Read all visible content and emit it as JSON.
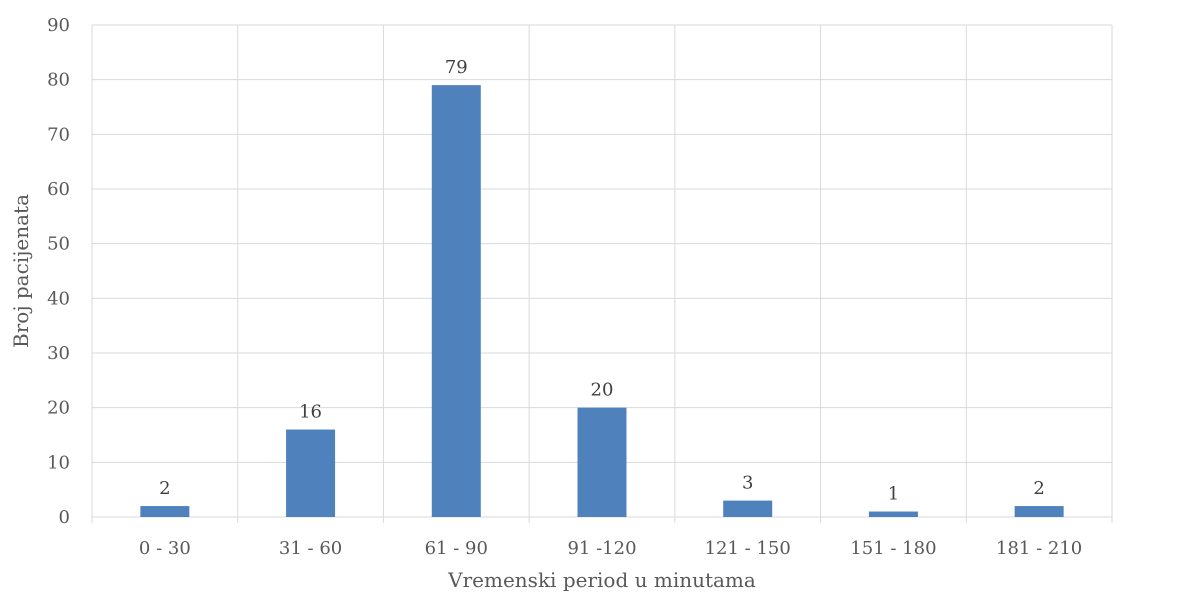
{
  "chart_data": {
    "type": "bar",
    "title": "",
    "xlabel": "Vremenski period u minutama",
    "ylabel": "Broj pacijenata",
    "categories": [
      "0 - 30",
      "31 - 60",
      "61 - 90",
      "91 -120",
      "121 - 150",
      "151 - 180",
      "181 - 210"
    ],
    "values": [
      2,
      16,
      79,
      20,
      3,
      1,
      2
    ],
    "ylim": [
      0,
      90
    ],
    "yticks": [
      0,
      10,
      20,
      30,
      40,
      50,
      60,
      70,
      80,
      90
    ],
    "grid": true,
    "data_labels": true,
    "bar_color": "#4f81bd",
    "grid_color": "#d9d9d9"
  }
}
